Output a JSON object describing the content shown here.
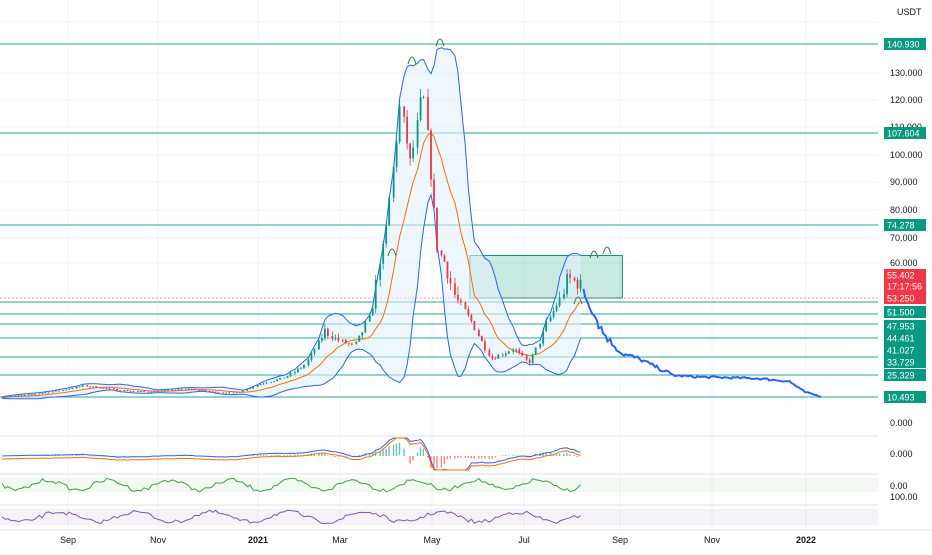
{
  "chart_data": {
    "type": "candlestick",
    "currency": "USDT",
    "x_labels": [
      "Sep",
      "Nov",
      "2021",
      "Mar",
      "May",
      "Jul",
      "Sep",
      "Nov",
      "2022"
    ],
    "y_ticks": [
      "130.000",
      "120.000",
      "110.000",
      "100.000",
      "90.000",
      "80.000",
      "70.000",
      "60.000"
    ],
    "price_badges": [
      {
        "label": "140.930",
        "value": 140.93,
        "color": "#089981"
      },
      {
        "label": "107.604",
        "value": 107.604,
        "color": "#089981"
      },
      {
        "label": "74.278",
        "value": 74.278,
        "color": "#089981"
      },
      {
        "label": "55.402",
        "value": 55.402,
        "color": "#f23645"
      },
      {
        "label": "17:17:56",
        "value": 55.402,
        "color": "#f23645"
      },
      {
        "label": "53.250",
        "value": 53.25,
        "color": "#f23645"
      },
      {
        "label": "51.500",
        "value": 51.5,
        "color": "#089981"
      },
      {
        "label": "47.953",
        "value": 47.953,
        "color": "#089981"
      },
      {
        "label": "44.461",
        "value": 44.461,
        "color": "#089981"
      },
      {
        "label": "41.027",
        "value": 41.027,
        "color": "#089981"
      },
      {
        "label": "33.729",
        "value": 33.729,
        "color": "#089981"
      },
      {
        "label": "25.329",
        "value": 25.329,
        "color": "#089981"
      },
      {
        "label": "10.493",
        "value": 10.493,
        "color": "#089981"
      }
    ],
    "indicator_labels": [
      "0.000",
      "0.000",
      "0.00",
      "100.00"
    ],
    "price_series": [
      {
        "d": "2020-08-01",
        "v": 10.5
      },
      {
        "d": "2020-08-20",
        "v": 12
      },
      {
        "d": "2020-09-10",
        "v": 15
      },
      {
        "d": "2020-09-25",
        "v": 18
      },
      {
        "d": "2020-10-05",
        "v": 17
      },
      {
        "d": "2020-10-20",
        "v": 15
      },
      {
        "d": "2020-11-05",
        "v": 14
      },
      {
        "d": "2020-11-20",
        "v": 15
      },
      {
        "d": "2020-12-05",
        "v": 16
      },
      {
        "d": "2020-12-20",
        "v": 14
      },
      {
        "d": "2021-01-05",
        "v": 13
      },
      {
        "d": "2021-01-20",
        "v": 19
      },
      {
        "d": "2021-02-05",
        "v": 23
      },
      {
        "d": "2021-02-20",
        "v": 30
      },
      {
        "d": "2021-03-05",
        "v": 43
      },
      {
        "d": "2021-03-15",
        "v": 40
      },
      {
        "d": "2021-03-25",
        "v": 38
      },
      {
        "d": "2021-04-05",
        "v": 47
      },
      {
        "d": "2021-04-15",
        "v": 70
      },
      {
        "d": "2021-04-25",
        "v": 118
      },
      {
        "d": "2021-05-02",
        "v": 96
      },
      {
        "d": "2021-05-10",
        "v": 124
      },
      {
        "d": "2021-05-20",
        "v": 65
      },
      {
        "d": "2021-06-01",
        "v": 53
      },
      {
        "d": "2021-06-15",
        "v": 43
      },
      {
        "d": "2021-06-25",
        "v": 33
      },
      {
        "d": "2021-07-10",
        "v": 37
      },
      {
        "d": "2021-07-20",
        "v": 31
      },
      {
        "d": "2021-08-01",
        "v": 45
      },
      {
        "d": "2021-08-15",
        "v": 57
      },
      {
        "d": "2021-08-25",
        "v": 55.4
      }
    ],
    "projection": [
      {
        "d": "2021-08-25",
        "v": 55.4
      },
      {
        "d": "2021-09-05",
        "v": 44
      },
      {
        "d": "2021-09-20",
        "v": 35
      },
      {
        "d": "2021-10-01",
        "v": 33
      },
      {
        "d": "2021-10-10",
        "v": 30
      },
      {
        "d": "2021-10-25",
        "v": 25
      },
      {
        "d": "2021-11-10",
        "v": 24
      },
      {
        "d": "2021-12-01",
        "v": 23.5
      },
      {
        "d": "2021-12-20",
        "v": 23
      },
      {
        "d": "2022-01-10",
        "v": 21
      },
      {
        "d": "2022-01-20",
        "v": 14
      },
      {
        "d": "2022-02-01",
        "v": 10.5
      }
    ],
    "zone": {
      "from": "2021-06-10",
      "to": "2021-09-20",
      "low": 53.25,
      "high": 63
    },
    "colors": {
      "up": "#089981",
      "down": "#f23645",
      "level_line": "#26a69a",
      "bollinger": "#2962ff",
      "bollinger_fill": "#e3f2fd",
      "ma": "#ff6d00",
      "projection": "#2962ff",
      "zone": "#089981",
      "rsi": "#7e57c2",
      "stoch": "#43a047"
    }
  }
}
